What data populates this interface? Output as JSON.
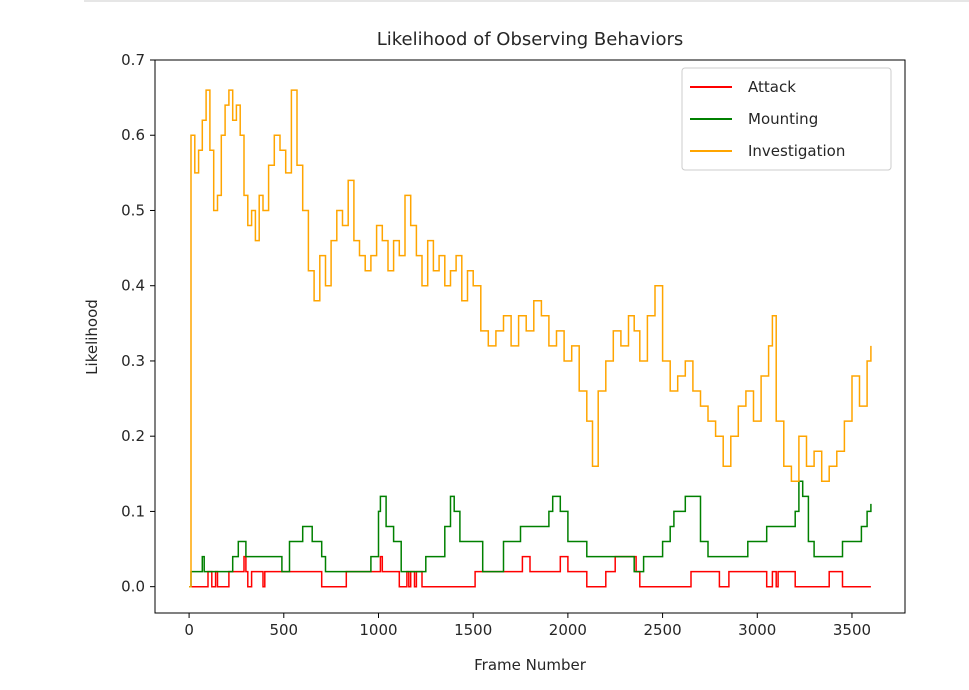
{
  "chart_data": {
    "type": "line",
    "title": "Likelihood of Observing Behaviors",
    "xlabel": "Frame Number",
    "ylabel": "Likelihood",
    "xlim": [
      -180,
      3780
    ],
    "ylim": [
      -0.035,
      0.7
    ],
    "xticks": [
      0,
      500,
      1000,
      1500,
      2000,
      2500,
      3000,
      3500
    ],
    "yticks": [
      0.0,
      0.1,
      0.2,
      0.3,
      0.4,
      0.5,
      0.6,
      0.7
    ],
    "xtick_labels": [
      "0",
      "500",
      "1000",
      "1500",
      "2000",
      "2500",
      "3000",
      "3500"
    ],
    "ytick_labels": [
      "0.0",
      "0.1",
      "0.2",
      "0.3",
      "0.4",
      "0.5",
      "0.6",
      "0.7"
    ],
    "grid": false,
    "legend_position": "top-right",
    "series": [
      {
        "name": "Attack",
        "color": "#ff0000",
        "x": [
          0,
          10,
          80,
          100,
          120,
          140,
          150,
          200,
          210,
          240,
          290,
          300,
          310,
          330,
          380,
          390,
          400,
          460,
          560,
          600,
          680,
          700,
          830,
          850,
          1000,
          1010,
          1020,
          1030,
          1100,
          1110,
          1150,
          1160,
          1170,
          1190,
          1200,
          1220,
          1230,
          1500,
          1510,
          1600,
          1700,
          1750,
          1760,
          1800,
          1850,
          1900,
          1950,
          1960,
          2000,
          2080,
          2100,
          2200,
          2250,
          2300,
          2360,
          2380,
          2500,
          2600,
          2650,
          2800,
          2850,
          2900,
          3000,
          3050,
          3080,
          3100,
          3110,
          3200,
          3250,
          3380,
          3400,
          3450,
          3500,
          3600
        ],
        "y": [
          0.0,
          0.0,
          0.0,
          0.02,
          0.0,
          0.02,
          0.0,
          0.0,
          0.02,
          0.02,
          0.04,
          0.02,
          0.0,
          0.02,
          0.02,
          0.0,
          0.02,
          0.02,
          0.02,
          0.02,
          0.02,
          0.0,
          0.02,
          0.02,
          0.02,
          0.04,
          0.02,
          0.02,
          0.02,
          0.0,
          0.02,
          0.0,
          0.02,
          0.0,
          0.02,
          0.02,
          0.0,
          0.0,
          0.02,
          0.02,
          0.02,
          0.02,
          0.04,
          0.02,
          0.02,
          0.02,
          0.02,
          0.04,
          0.02,
          0.02,
          0.0,
          0.02,
          0.04,
          0.04,
          0.02,
          0.0,
          0.0,
          0.0,
          0.02,
          0.0,
          0.02,
          0.02,
          0.02,
          0.0,
          0.02,
          0.0,
          0.02,
          0.0,
          0.0,
          0.02,
          0.02,
          0.0,
          0.0,
          0.0
        ]
      },
      {
        "name": "Mounting",
        "color": "#008000",
        "x": [
          0,
          10,
          70,
          80,
          100,
          130,
          150,
          230,
          260,
          300,
          350,
          400,
          490,
          530,
          560,
          600,
          650,
          700,
          720,
          780,
          850,
          900,
          960,
          1000,
          1010,
          1040,
          1080,
          1120,
          1200,
          1220,
          1250,
          1300,
          1350,
          1380,
          1400,
          1430,
          1480,
          1550,
          1600,
          1660,
          1700,
          1750,
          1800,
          1900,
          1920,
          1960,
          2000,
          2050,
          2100,
          2150,
          2200,
          2250,
          2300,
          2350,
          2400,
          2420,
          2500,
          2540,
          2560,
          2620,
          2650,
          2700,
          2740,
          2800,
          2900,
          2950,
          3000,
          3050,
          3100,
          3150,
          3200,
          3220,
          3240,
          3270,
          3300,
          3400,
          3450,
          3500,
          3550,
          3580,
          3600
        ],
        "y": [
          0.0,
          0.02,
          0.04,
          0.02,
          0.02,
          0.02,
          0.02,
          0.04,
          0.06,
          0.04,
          0.04,
          0.04,
          0.02,
          0.06,
          0.06,
          0.08,
          0.06,
          0.04,
          0.02,
          0.02,
          0.02,
          0.02,
          0.04,
          0.1,
          0.12,
          0.08,
          0.06,
          0.02,
          0.02,
          0.02,
          0.04,
          0.04,
          0.08,
          0.12,
          0.1,
          0.06,
          0.06,
          0.02,
          0.02,
          0.06,
          0.06,
          0.08,
          0.08,
          0.1,
          0.12,
          0.1,
          0.06,
          0.06,
          0.04,
          0.04,
          0.04,
          0.04,
          0.04,
          0.02,
          0.04,
          0.04,
          0.06,
          0.08,
          0.1,
          0.12,
          0.12,
          0.06,
          0.04,
          0.04,
          0.04,
          0.06,
          0.06,
          0.08,
          0.08,
          0.08,
          0.1,
          0.14,
          0.12,
          0.06,
          0.04,
          0.04,
          0.06,
          0.06,
          0.08,
          0.1,
          0.11
        ]
      },
      {
        "name": "Investigation",
        "color": "#ffa500",
        "x": [
          0,
          10,
          30,
          50,
          70,
          90,
          110,
          130,
          150,
          170,
          190,
          210,
          230,
          250,
          270,
          290,
          310,
          330,
          350,
          370,
          390,
          420,
          450,
          480,
          510,
          540,
          570,
          600,
          630,
          660,
          690,
          720,
          750,
          780,
          810,
          840,
          870,
          900,
          930,
          960,
          990,
          1020,
          1050,
          1080,
          1110,
          1140,
          1170,
          1200,
          1230,
          1260,
          1290,
          1320,
          1350,
          1380,
          1410,
          1440,
          1470,
          1500,
          1540,
          1580,
          1620,
          1660,
          1700,
          1740,
          1780,
          1820,
          1860,
          1900,
          1940,
          1980,
          2020,
          2060,
          2100,
          2130,
          2160,
          2200,
          2240,
          2280,
          2320,
          2350,
          2380,
          2420,
          2460,
          2500,
          2540,
          2580,
          2620,
          2660,
          2700,
          2740,
          2780,
          2820,
          2860,
          2900,
          2940,
          2980,
          3020,
          3060,
          3080,
          3100,
          3140,
          3180,
          3220,
          3260,
          3300,
          3340,
          3380,
          3420,
          3460,
          3500,
          3540,
          3580,
          3600
        ],
        "y": [
          0.0,
          0.6,
          0.55,
          0.58,
          0.62,
          0.66,
          0.58,
          0.5,
          0.52,
          0.6,
          0.64,
          0.66,
          0.62,
          0.64,
          0.6,
          0.52,
          0.48,
          0.5,
          0.46,
          0.52,
          0.5,
          0.56,
          0.6,
          0.58,
          0.55,
          0.66,
          0.56,
          0.5,
          0.42,
          0.38,
          0.44,
          0.4,
          0.46,
          0.5,
          0.48,
          0.54,
          0.46,
          0.44,
          0.42,
          0.44,
          0.48,
          0.46,
          0.42,
          0.46,
          0.44,
          0.52,
          0.48,
          0.44,
          0.4,
          0.46,
          0.42,
          0.44,
          0.4,
          0.42,
          0.44,
          0.38,
          0.42,
          0.4,
          0.34,
          0.32,
          0.34,
          0.36,
          0.32,
          0.36,
          0.34,
          0.38,
          0.36,
          0.32,
          0.34,
          0.3,
          0.32,
          0.26,
          0.22,
          0.16,
          0.26,
          0.3,
          0.34,
          0.32,
          0.36,
          0.34,
          0.3,
          0.36,
          0.4,
          0.3,
          0.26,
          0.28,
          0.3,
          0.26,
          0.24,
          0.22,
          0.2,
          0.16,
          0.2,
          0.24,
          0.26,
          0.22,
          0.28,
          0.32,
          0.36,
          0.22,
          0.16,
          0.14,
          0.2,
          0.16,
          0.18,
          0.14,
          0.16,
          0.18,
          0.22,
          0.28,
          0.24,
          0.3,
          0.32
        ]
      }
    ]
  }
}
